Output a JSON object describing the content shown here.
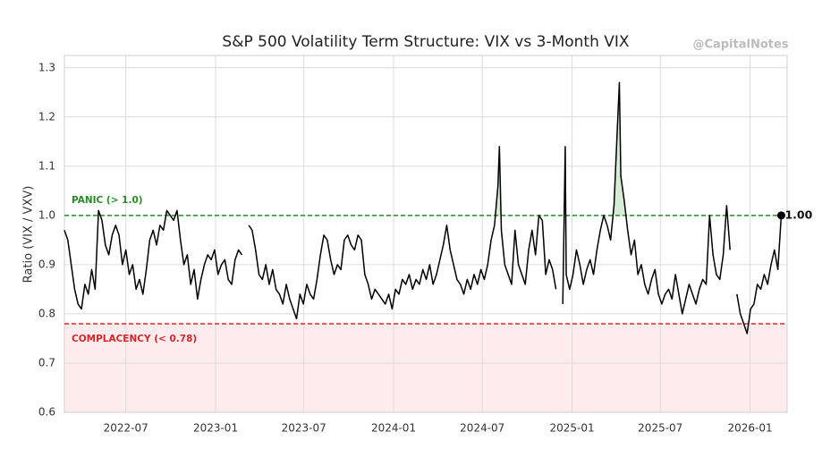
{
  "chart_data": {
    "type": "line",
    "title": "S&P 500 Volatility Term Structure: VIX vs 3-Month VIX",
    "watermark": "@CapitalNotes",
    "y_label": "Ratio (VIX / VXV)",
    "xlim": [
      "2022-02-25",
      "2026-03-18"
    ],
    "xticks": [
      "2022-07",
      "2023-01",
      "2023-07",
      "2024-01",
      "2024-07",
      "2025-01",
      "2025-07",
      "2026-01"
    ],
    "ylim": [
      0.6,
      1.325
    ],
    "yticks": [
      0.6,
      0.7,
      0.8,
      0.9,
      {
        "value": 1,
        "label": "1.0"
      },
      1.1,
      1.2,
      1.3
    ],
    "grid": true,
    "thresholds": [
      {
        "value": 1.0,
        "label": "PANIC (> 1.0)",
        "color": "#2a8a2a",
        "above_fill": "#d6ecd6"
      },
      {
        "value": 0.78,
        "label": "COMPLACENCY (< 0.78)",
        "color": "#d62728",
        "below_fill": "#fdebed"
      }
    ],
    "end_label": "1.00",
    "x": [
      "2022-02-25",
      "2022-03-04",
      "2022-03-11",
      "2022-03-18",
      "2022-03-25",
      "2022-04-01",
      "2022-04-08",
      "2022-04-15",
      "2022-04-22",
      "2022-04-29",
      "2022-05-06",
      "2022-05-13",
      "2022-05-20",
      "2022-05-27",
      "2022-06-03",
      "2022-06-10",
      "2022-06-17",
      "2022-06-24",
      "2022-07-01",
      "2022-07-08",
      "2022-07-15",
      "2022-07-22",
      "2022-07-29",
      "2022-08-05",
      "2022-08-12",
      "2022-08-19",
      "2022-08-26",
      "2022-09-02",
      "2022-09-09",
      "2022-09-16",
      "2022-09-23",
      "2022-09-30",
      "2022-10-07",
      "2022-10-14",
      "2022-10-21",
      "2022-10-28",
      "2022-11-04",
      "2022-11-11",
      "2022-11-18",
      "2022-11-25",
      "2022-12-02",
      "2022-12-09",
      "2022-12-16",
      "2022-12-23",
      "2022-12-30",
      "2023-01-06",
      "2023-01-13",
      "2023-01-20",
      "2023-01-27",
      "2023-02-03",
      "2023-02-10",
      "2023-02-17",
      "2023-02-24",
      "2023-03-03",
      "2023-03-10",
      "2023-03-17",
      "2023-03-24",
      "2023-03-31",
      "2023-04-07",
      "2023-04-14",
      "2023-04-21",
      "2023-04-28",
      "2023-05-05",
      "2023-05-12",
      "2023-05-19",
      "2023-05-26",
      "2023-06-02",
      "2023-06-09",
      "2023-06-16",
      "2023-06-23",
      "2023-06-30",
      "2023-07-07",
      "2023-07-14",
      "2023-07-21",
      "2023-07-28",
      "2023-08-04",
      "2023-08-11",
      "2023-08-18",
      "2023-08-25",
      "2023-09-01",
      "2023-09-08",
      "2023-09-15",
      "2023-09-22",
      "2023-09-29",
      "2023-10-06",
      "2023-10-13",
      "2023-10-20",
      "2023-10-27",
      "2023-11-03",
      "2023-11-10",
      "2023-11-17",
      "2023-11-24",
      "2023-12-01",
      "2023-12-08",
      "2023-12-15",
      "2023-12-22",
      "2023-12-29",
      "2024-01-05",
      "2024-01-12",
      "2024-01-19",
      "2024-01-26",
      "2024-02-02",
      "2024-02-09",
      "2024-02-16",
      "2024-02-23",
      "2024-03-01",
      "2024-03-08",
      "2024-03-15",
      "2024-03-22",
      "2024-03-29",
      "2024-04-05",
      "2024-04-12",
      "2024-04-19",
      "2024-04-26",
      "2024-05-03",
      "2024-05-10",
      "2024-05-17",
      "2024-05-24",
      "2024-05-31",
      "2024-06-07",
      "2024-06-14",
      "2024-06-21",
      "2024-06-28",
      "2024-07-05",
      "2024-07-12",
      "2024-07-19",
      "2024-07-26",
      "2024-08-02",
      "2024-08-05",
      "2024-08-09",
      "2024-08-16",
      "2024-08-23",
      "2024-08-30",
      "2024-09-06",
      "2024-09-13",
      "2024-09-20",
      "2024-09-27",
      "2024-10-04",
      "2024-10-11",
      "2024-10-18",
      "2024-10-25",
      "2024-11-01",
      "2024-11-08",
      "2024-11-15",
      "2024-11-22",
      "2024-11-29",
      "2024-12-06",
      "2024-12-13",
      "2024-12-18",
      "2024-12-20",
      "2024-12-27",
      "2025-01-03",
      "2025-01-10",
      "2025-01-17",
      "2025-01-24",
      "2025-01-31",
      "2025-02-07",
      "2025-02-14",
      "2025-02-21",
      "2025-02-28",
      "2025-03-07",
      "2025-03-14",
      "2025-03-21",
      "2025-03-28",
      "2025-04-04",
      "2025-04-08",
      "2025-04-11",
      "2025-04-18",
      "2025-04-25",
      "2025-05-02",
      "2025-05-09",
      "2025-05-16",
      "2025-05-23",
      "2025-05-30",
      "2025-06-06",
      "2025-06-13",
      "2025-06-20",
      "2025-06-27",
      "2025-07-04",
      "2025-07-11",
      "2025-07-18",
      "2025-07-25",
      "2025-08-01",
      "2025-08-08",
      "2025-08-15",
      "2025-08-22",
      "2025-08-29",
      "2025-09-05",
      "2025-09-12",
      "2025-09-19",
      "2025-09-26",
      "2025-10-03",
      "2025-10-10",
      "2025-10-17",
      "2025-10-24",
      "2025-10-31",
      "2025-11-07",
      "2025-11-14",
      "2025-11-21",
      "2025-11-28",
      "2025-12-05",
      "2025-12-12",
      "2025-12-19",
      "2025-12-26",
      "2026-01-02",
      "2026-01-09",
      "2026-01-16",
      "2026-01-23",
      "2026-01-30",
      "2026-02-06",
      "2026-02-13",
      "2026-02-20",
      "2026-02-27",
      "2026-03-06"
    ],
    "series": [
      {
        "color": "#000000",
        "values": [
          0.97,
          0.95,
          0.9,
          0.85,
          0.82,
          0.81,
          0.86,
          0.84,
          0.89,
          0.85,
          1.01,
          0.99,
          0.94,
          0.92,
          0.96,
          0.98,
          0.96,
          0.9,
          0.93,
          0.88,
          0.9,
          0.85,
          0.87,
          0.84,
          0.89,
          0.95,
          0.97,
          0.94,
          0.98,
          0.97,
          1.01,
          1.0,
          0.99,
          1.01,
          0.95,
          0.9,
          0.92,
          0.86,
          0.89,
          0.83,
          0.87,
          0.9,
          0.92,
          0.91,
          0.93,
          0.88,
          0.9,
          0.91,
          0.87,
          0.86,
          0.91,
          0.93,
          0.92,
          null,
          0.98,
          0.97,
          0.93,
          0.88,
          0.87,
          0.9,
          0.86,
          0.89,
          0.85,
          0.84,
          0.82,
          0.86,
          0.83,
          0.81,
          0.79,
          0.84,
          0.82,
          0.86,
          0.84,
          0.83,
          0.87,
          0.92,
          0.96,
          0.95,
          0.91,
          0.88,
          0.9,
          0.89,
          0.95,
          0.96,
          0.94,
          0.93,
          0.96,
          0.95,
          0.88,
          0.86,
          0.83,
          0.85,
          0.84,
          0.83,
          0.82,
          0.84,
          0.81,
          0.85,
          0.84,
          0.87,
          0.86,
          0.88,
          0.85,
          0.87,
          0.86,
          0.89,
          0.87,
          0.9,
          0.86,
          0.88,
          0.91,
          0.94,
          0.98,
          0.93,
          0.9,
          0.87,
          0.86,
          0.84,
          0.87,
          0.85,
          0.88,
          0.86,
          0.89,
          0.87,
          0.9,
          0.95,
          0.98,
          1.06,
          1.14,
          0.97,
          0.9,
          0.88,
          0.86,
          0.97,
          0.9,
          0.88,
          0.86,
          0.93,
          0.97,
          0.92,
          1.0,
          0.99,
          0.88,
          0.91,
          0.89,
          0.85,
          null,
          0.82,
          1.14,
          0.88,
          0.85,
          0.88,
          0.93,
          0.9,
          0.86,
          0.89,
          0.91,
          0.88,
          0.93,
          0.97,
          1.0,
          0.98,
          0.95,
          1.02,
          1.18,
          1.27,
          1.08,
          1.03,
          0.97,
          0.92,
          0.95,
          0.88,
          0.9,
          0.86,
          0.84,
          0.87,
          0.89,
          0.84,
          0.82,
          0.84,
          0.85,
          0.83,
          0.88,
          0.84,
          0.8,
          0.83,
          0.86,
          0.84,
          0.82,
          0.85,
          0.87,
          0.86,
          1.0,
          0.92,
          0.88,
          0.87,
          0.92,
          1.02,
          0.93,
          null,
          0.84,
          0.8,
          0.78,
          0.76,
          0.81,
          0.82,
          0.86,
          0.85,
          0.88,
          0.86,
          0.9,
          0.93,
          0.89,
          1.0
        ]
      }
    ]
  }
}
